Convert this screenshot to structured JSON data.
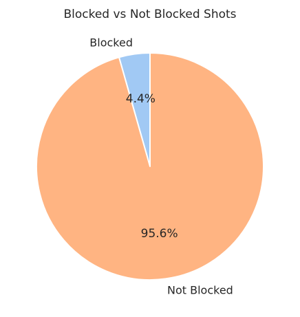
{
  "chart_data": {
    "type": "pie",
    "title": "Blocked vs Not Blocked Shots",
    "start_angle_deg": 90,
    "direction": "counterclockwise",
    "slices": [
      {
        "label": "Blocked",
        "value": 4.4,
        "pct_label": "4.4%",
        "color": "#a1c9f4"
      },
      {
        "label": "Not Blocked",
        "value": 95.6,
        "pct_label": "95.6%",
        "color": "#ffb482"
      }
    ]
  }
}
